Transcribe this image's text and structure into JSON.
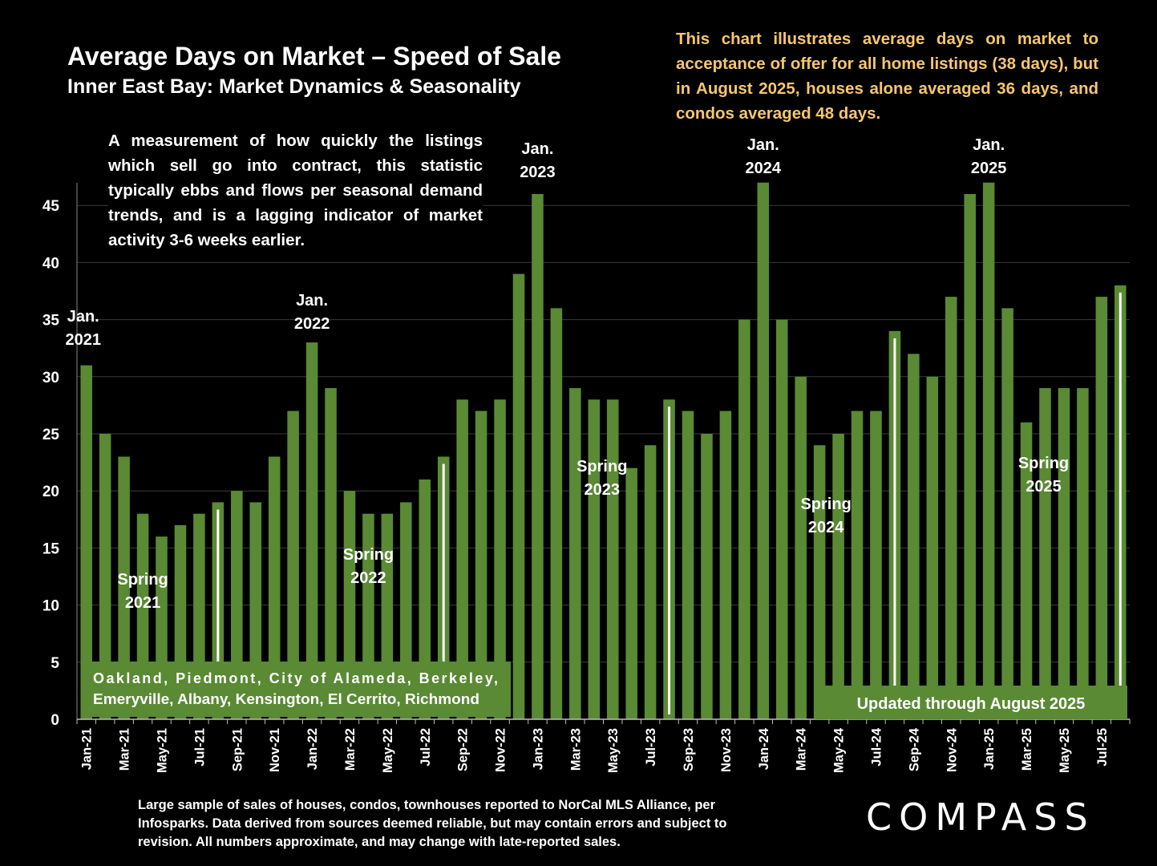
{
  "header": {
    "title": "Average Days on Market – Speed of Sale",
    "subtitle": "Inner East Bay: Market Dynamics & Seasonality"
  },
  "note": "This chart illustrates average days on market to acceptance of offer for all home listings (38 days), but in August 2025, houses alone averaged 36 days, and condos averaged 48 days.",
  "description": "A measurement of how quickly the listings which sell go into contract, this statistic typically ebbs and flows per seasonal demand trends, and is a lagging indicator of market activity 3-6 weeks earlier.",
  "footnote": "Large sample of sales of houses, condos, townhouses reported to NorCal MLS Alliance, per Infosparks. Data derived from sources deemed reliable, but may contain errors and subject to revision. All numbers approximate, and may change with late-reported sales.",
  "logo": "COMPASS",
  "colors": {
    "bar": "#5a8a34",
    "background": "#000000",
    "note": "#f8c66e",
    "grid": "#3a3a3a"
  },
  "chart_data": {
    "type": "bar",
    "categories": [
      "Jan-21",
      "Feb-21",
      "Mar-21",
      "Apr-21",
      "May-21",
      "Jun-21",
      "Jul-21",
      "Aug-21",
      "Sep-21",
      "Oct-21",
      "Nov-21",
      "Dec-21",
      "Jan-22",
      "Feb-22",
      "Mar-22",
      "Apr-22",
      "May-22",
      "Jun-22",
      "Jul-22",
      "Aug-22",
      "Sep-22",
      "Oct-22",
      "Nov-22",
      "Dec-22",
      "Jan-23",
      "Feb-23",
      "Mar-23",
      "Apr-23",
      "May-23",
      "Jun-23",
      "Jul-23",
      "Aug-23",
      "Sep-23",
      "Oct-23",
      "Nov-23",
      "Dec-23",
      "Jan-24",
      "Feb-24",
      "Mar-24",
      "Apr-24",
      "May-24",
      "Jun-24",
      "Jul-24",
      "Aug-24",
      "Sep-24",
      "Oct-24",
      "Nov-24",
      "Dec-24",
      "Jan-25",
      "Feb-25",
      "Mar-25",
      "Apr-25",
      "May-25",
      "Jun-25",
      "Jul-25",
      "Aug-25"
    ],
    "tick_labels": [
      "Jan-21",
      "Mar-21",
      "May-21",
      "Jul-21",
      "Sep-21",
      "Nov-21",
      "Jan-22",
      "Mar-22",
      "May-22",
      "Jul-22",
      "Sep-22",
      "Nov-22",
      "Jan-23",
      "Mar-23",
      "May-23",
      "Jul-23",
      "Sep-23",
      "Nov-23",
      "Jan-24",
      "Mar-24",
      "May-24",
      "Jul-24",
      "Sep-24",
      "Nov-24",
      "Jan-25",
      "Mar-25",
      "May-25",
      "Jul-25"
    ],
    "values": [
      31,
      25,
      23,
      18,
      16,
      17,
      18,
      19,
      20,
      19,
      23,
      27,
      33,
      29,
      20,
      18,
      18,
      19,
      21,
      23,
      28,
      27,
      28,
      39,
      46,
      36,
      29,
      28,
      28,
      22,
      24,
      28,
      27,
      25,
      27,
      35,
      47,
      35,
      30,
      24,
      25,
      27,
      27,
      34,
      32,
      30,
      37,
      46,
      47,
      36,
      26,
      29,
      29,
      29,
      37,
      38
    ],
    "ylim": [
      0,
      47
    ],
    "yticks": [
      0,
      5,
      10,
      15,
      20,
      25,
      30,
      35,
      40,
      45
    ],
    "grid": true,
    "title": "Average Days on Market – Speed of Sale",
    "subtitle": "Inner East Bay: Market Dynamics & Seasonality",
    "xlabel": "",
    "ylabel": "",
    "annotations": {
      "jan_labels": [
        {
          "category": "Jan-21",
          "line1": "Jan.",
          "line2": "2021"
        },
        {
          "category": "Jan-22",
          "line1": "Jan.",
          "line2": "2022"
        },
        {
          "category": "Jan-23",
          "line1": "Jan.",
          "line2": "2023"
        },
        {
          "category": "Jan-24",
          "line1": "Jan.",
          "line2": "2024"
        },
        {
          "category": "Jan-25",
          "line1": "Jan.",
          "line2": "2025"
        }
      ],
      "spring_labels": [
        {
          "category": "Apr-21",
          "line1": "Spring",
          "line2": "2021"
        },
        {
          "category": "Apr-22",
          "line1": "Spring",
          "line2": "2022"
        },
        {
          "category": "Apr-23",
          "line1": "Spring",
          "line2": "2023"
        },
        {
          "category": "Apr-24",
          "line1": "Spring",
          "line2": "2024"
        },
        {
          "category": "Apr-25",
          "line1": "Spring",
          "line2": "2025"
        }
      ],
      "highlight_bars": [
        "Aug-21",
        "Aug-22",
        "Aug-23",
        "Aug-24",
        "Aug-25"
      ],
      "region_box": "Oakland, Piedmont, City of Alameda, Berkeley, Emeryville, Albany, Kensington, El Cerrito, Richmond",
      "updated_box": "Updated through August 2025"
    }
  }
}
